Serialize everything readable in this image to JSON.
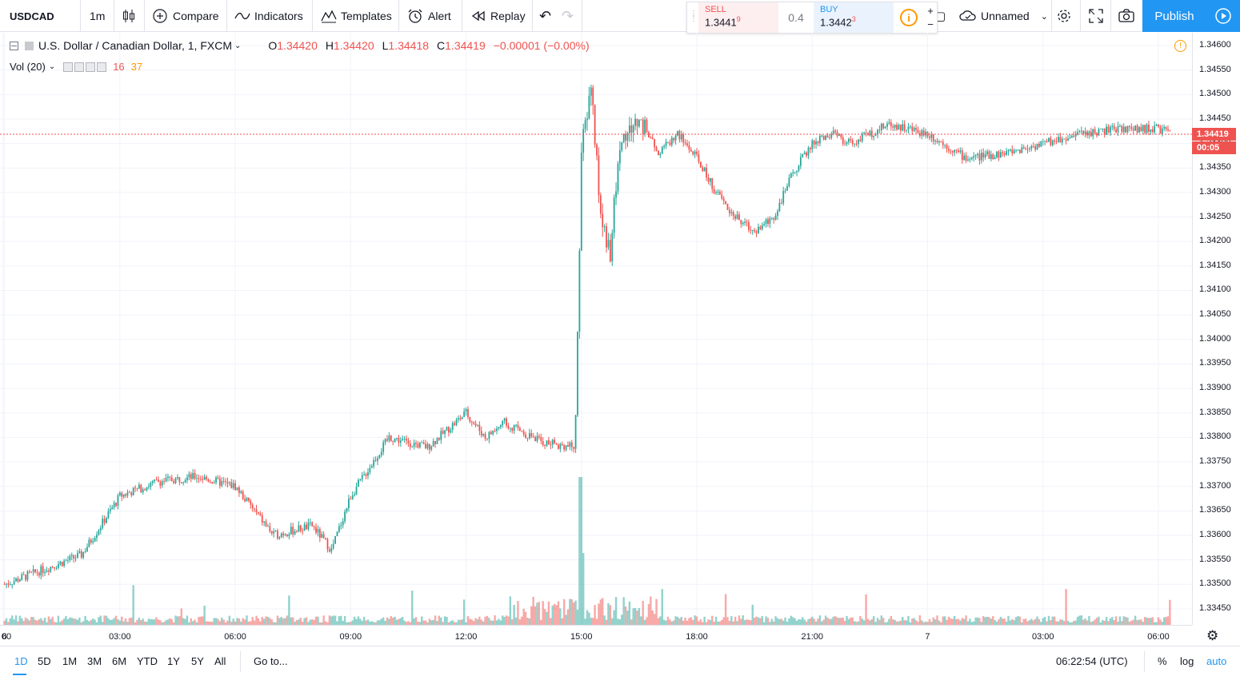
{
  "toolbar": {
    "symbol": "USDCAD",
    "interval": "1m",
    "compare": "Compare",
    "indicators": "Indicators",
    "templates": "Templates",
    "alert": "Alert",
    "replay": "Replay",
    "layout_name": "Unnamed",
    "publish": "Publish"
  },
  "trade_panel": {
    "sell_label": "SELL",
    "sell_price_main": "1.3441",
    "sell_price_sup": "9",
    "spread": "0.4",
    "buy_label": "BUY",
    "buy_price_main": "1.3442",
    "buy_price_sup": "3"
  },
  "legend": {
    "title": "U.S. Dollar / Canadian Dollar, 1, FXCM",
    "open_label": "O",
    "open": "1.34420",
    "high_label": "H",
    "high": "1.34420",
    "low_label": "L",
    "low": "1.34418",
    "close_label": "C",
    "close": "1.34419",
    "change": "−0.00001 (−0.00%)",
    "vol_label": "Vol (20)",
    "vol_value": "16",
    "vol_ma": "37"
  },
  "price_axis": {
    "ticks": [
      "1.34600",
      "1.34550",
      "1.34500",
      "1.34450",
      "1.34400",
      "1.34350",
      "1.34300",
      "1.34250",
      "1.34200",
      "1.34150",
      "1.34100",
      "1.34050",
      "1.34000",
      "1.33950",
      "1.33900",
      "1.33850",
      "1.33800",
      "1.33750",
      "1.33700",
      "1.33650",
      "1.33600",
      "1.33550",
      "1.33500",
      "1.33450"
    ],
    "current_price": "1.34419",
    "countdown": "00:05"
  },
  "time_axis": {
    "ticks": [
      "00",
      "6",
      "03:00",
      "06:00",
      "09:00",
      "12:00",
      "15:00",
      "18:00",
      "21:00",
      "7",
      "03:00",
      "06:00"
    ]
  },
  "bottom": {
    "ranges": [
      "1D",
      "5D",
      "1M",
      "3M",
      "6M",
      "YTD",
      "1Y",
      "5Y",
      "All"
    ],
    "goto": "Go to...",
    "clock": "06:22:54 (UTC)",
    "pct": "%",
    "log": "log",
    "auto": "auto"
  },
  "colors": {
    "up": "#26a69a",
    "down": "#ef5350",
    "accent": "#2196f3",
    "grid": "#f0f3fa"
  },
  "chart_data": {
    "type": "candlestick",
    "symbol": "USDCAD",
    "interval": "1m",
    "ylim": [
      1.3342,
      1.3462
    ],
    "x": [
      "00:00",
      "02:00",
      "03:00",
      "04:00",
      "05:00",
      "06:00",
      "07:00",
      "08:00",
      "08:30",
      "09:00",
      "10:00",
      "11:00",
      "12:00",
      "12:30",
      "13:00",
      "14:00",
      "14:50",
      "15:00",
      "15:15",
      "15:30",
      "15:45",
      "16:00",
      "16:30",
      "17:00",
      "17:30",
      "18:00",
      "18:30",
      "19:00",
      "19:30",
      "20:00",
      "20:30",
      "21:00",
      "21:30",
      "22:00",
      "23:00",
      "00:00",
      "01:00",
      "02:00",
      "03:00",
      "04:00",
      "05:00",
      "06:00",
      "06:20"
    ],
    "close": [
      1.335,
      1.3356,
      1.3368,
      1.3371,
      1.3372,
      1.337,
      1.336,
      1.3362,
      1.3357,
      1.3368,
      1.338,
      1.3378,
      1.3385,
      1.338,
      1.3383,
      1.3379,
      1.3378,
      1.3438,
      1.3452,
      1.3425,
      1.3418,
      1.344,
      1.3445,
      1.3438,
      1.3442,
      1.3437,
      1.343,
      1.3425,
      1.3422,
      1.3425,
      1.3434,
      1.344,
      1.3442,
      1.344,
      1.3444,
      1.3442,
      1.3437,
      1.3438,
      1.344,
      1.3442,
      1.3443,
      1.3443,
      1.34419
    ],
    "volume_peak_time": "15:00"
  }
}
